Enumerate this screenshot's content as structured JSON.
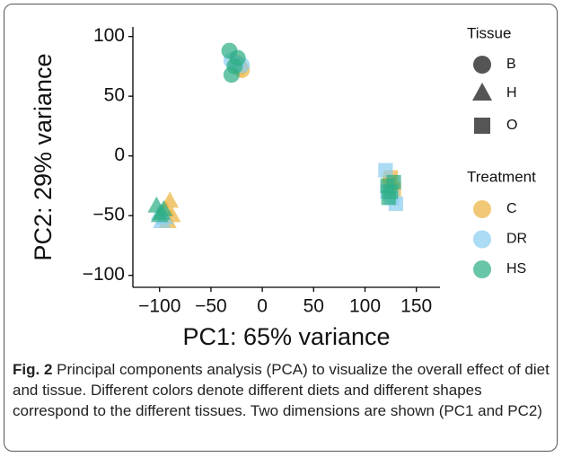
{
  "chart_data": {
    "type": "scatter",
    "xlabel": "PC1: 65% variance",
    "ylabel": "PC2: 29% variance",
    "xlim": [
      -126,
      173
    ],
    "ylim": [
      -110,
      108
    ],
    "xticks": [
      {
        "value": -100,
        "label": "−100"
      },
      {
        "value": -50,
        "label": "−50"
      },
      0,
      50,
      100,
      150
    ],
    "yticks": [
      {
        "value": -100,
        "label": "−100"
      },
      {
        "value": -50,
        "label": "−50"
      },
      0,
      50,
      100
    ],
    "shape_legend": {
      "title": "Tissue",
      "labels": [
        "B",
        "H",
        "O"
      ],
      "shapes": [
        "circle",
        "triangle",
        "square"
      ]
    },
    "color_legend": {
      "title": "Treatment"
    },
    "series": [
      {
        "name": "C",
        "color": "#ecb441",
        "x": [
          -22,
          -20,
          -25,
          -90,
          -88,
          -94,
          -92,
          125,
          128,
          124
        ],
        "y": [
          74,
          72,
          78,
          -38,
          -50,
          -45,
          -55,
          -18,
          -28,
          -22
        ],
        "tissue": [
          0,
          0,
          0,
          1,
          1,
          1,
          1,
          2,
          2,
          2
        ]
      },
      {
        "name": "DR",
        "color": "#8ccdf0",
        "x": [
          -30,
          -25,
          -20,
          -98,
          -95,
          -100,
          120,
          130,
          126,
          122
        ],
        "y": [
          80,
          77,
          76,
          -55,
          -52,
          -48,
          -12,
          -40,
          -35,
          -30
        ],
        "tissue": [
          0,
          0,
          0,
          1,
          1,
          1,
          2,
          2,
          2,
          2
        ]
      },
      {
        "name": "HS",
        "color": "#2fae86",
        "x": [
          -32,
          -27,
          -30,
          -24,
          -103,
          -98,
          -100,
          -96,
          122,
          125,
          128,
          123
        ],
        "y": [
          88,
          75,
          68,
          82,
          -42,
          -48,
          -50,
          -45,
          -25,
          -30,
          -22,
          -35
        ],
        "tissue": [
          0,
          0,
          0,
          0,
          1,
          1,
          1,
          1,
          2,
          2,
          2,
          2
        ]
      }
    ]
  },
  "caption": {
    "label": "Fig. 2",
    "text": "Principal components analysis (PCA) to visualize the overall effect of diet and tissue. Different colors denote different diets and different shapes correspond to the different tissues. Two dimensions are shown (PC1 and PC2)"
  }
}
